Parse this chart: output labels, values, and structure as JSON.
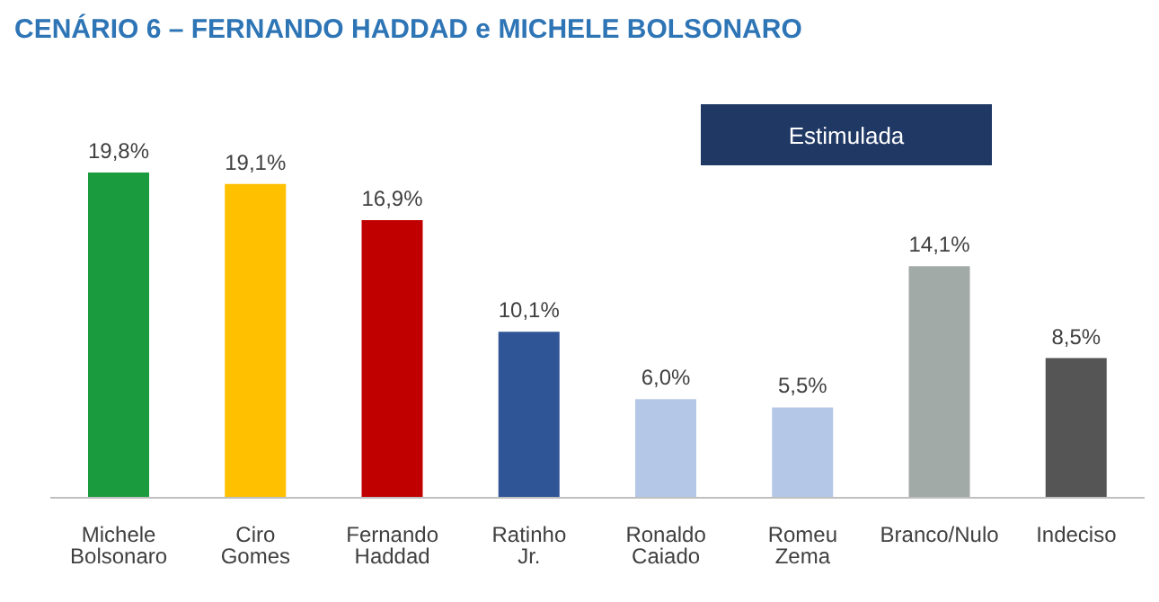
{
  "chart_data": {
    "type": "bar",
    "title": "CENÁRIO 6 – FERNANDO HADDAD e MICHELE BOLSONARO",
    "annotations": [
      "Estimulada"
    ],
    "categories": [
      "Michele Bolsonaro",
      "Ciro Gomes",
      "Fernando Haddad",
      "Ratinho Jr.",
      "Ronaldo Caiado",
      "Romeu Zema",
      "Branco/Nulo",
      "Indeciso"
    ],
    "values": [
      19.8,
      19.1,
      16.9,
      10.1,
      6.0,
      5.5,
      14.1,
      8.5
    ],
    "value_labels": [
      "19,8%",
      "19,1%",
      "16,9%",
      "10,1%",
      "6,0%",
      "5,5%",
      "14,1%",
      "8,5%"
    ],
    "colors": [
      "#1a9c3e",
      "#ffc000",
      "#c00000",
      "#2f5597",
      "#b4c7e7",
      "#b4c7e7",
      "#a2aaa8",
      "#555555"
    ],
    "relative": false,
    "grid": false,
    "legend": false
  }
}
